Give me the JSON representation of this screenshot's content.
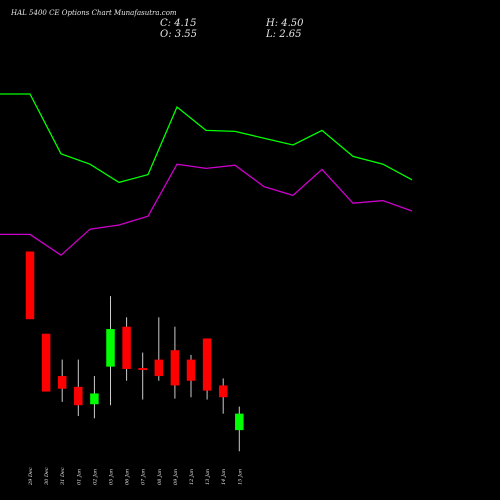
{
  "header": {
    "title": "HAL 5400 CE Options Chart Munafasutra.com",
    "close": "C: 4.15",
    "open": "O: 3.55",
    "high": "H: 4.50",
    "low": "L: 2.65"
  },
  "chart_data": {
    "type": "candlestick",
    "background": "#000000",
    "colors": {
      "up": "#00ff00",
      "down": "#ff0000",
      "upper_line": "#00ff00",
      "lower_line": "#cc00cc"
    },
    "x": [
      "29 Dec",
      "30 Dec",
      "31 Dec",
      "01 Jan",
      "02 Jan",
      "05 Jan",
      "06 Jan",
      "07 Jan",
      "08 Jan",
      "09 Jan",
      "12 Jan",
      "13 Jan",
      "14 Jan",
      "15 Jan"
    ],
    "candles": [
      {
        "open": 4.7,
        "high": 4.7,
        "low": 3.26,
        "close": 3.26
      },
      {
        "open": 2.95,
        "high": 2.95,
        "low": 1.72,
        "close": 1.72
      },
      {
        "open": 2.05,
        "high": 2.4,
        "low": 1.5,
        "close": 1.78
      },
      {
        "open": 1.82,
        "high": 2.4,
        "low": 1.2,
        "close": 1.43
      },
      {
        "open": 1.45,
        "high": 2.05,
        "low": 1.15,
        "close": 1.68
      },
      {
        "open": 2.25,
        "high": 3.75,
        "low": 1.43,
        "close": 3.05
      },
      {
        "open": 3.1,
        "high": 3.3,
        "low": 1.95,
        "close": 2.2
      },
      {
        "open": 2.22,
        "high": 2.55,
        "low": 1.55,
        "close": 2.18
      },
      {
        "open": 2.4,
        "high": 3.3,
        "low": 1.95,
        "close": 2.05
      },
      {
        "open": 2.6,
        "high": 3.1,
        "low": 1.57,
        "close": 1.85
      },
      {
        "open": 2.4,
        "high": 2.5,
        "low": 1.6,
        "close": 1.95
      },
      {
        "open": 2.85,
        "high": 2.85,
        "low": 1.55,
        "close": 1.74
      },
      {
        "open": 1.85,
        "high": 2.0,
        "low": 1.25,
        "close": 1.6
      },
      {
        "open": 0.9,
        "high": 1.4,
        "low": 0.45,
        "close": 1.25
      }
    ],
    "upper_line": [
      10.0,
      10.0,
      8.85,
      8.65,
      8.3,
      8.45,
      9.75,
      9.3,
      9.28,
      9.15,
      9.02,
      9.3,
      8.8,
      8.65,
      8.35
    ],
    "lower_line": [
      7.3,
      7.3,
      6.9,
      7.4,
      7.48,
      7.65,
      8.65,
      8.57,
      8.63,
      8.22,
      8.05,
      8.55,
      7.9,
      7.95,
      7.75
    ],
    "title": "",
    "xlabel": "",
    "ylabel": ""
  }
}
